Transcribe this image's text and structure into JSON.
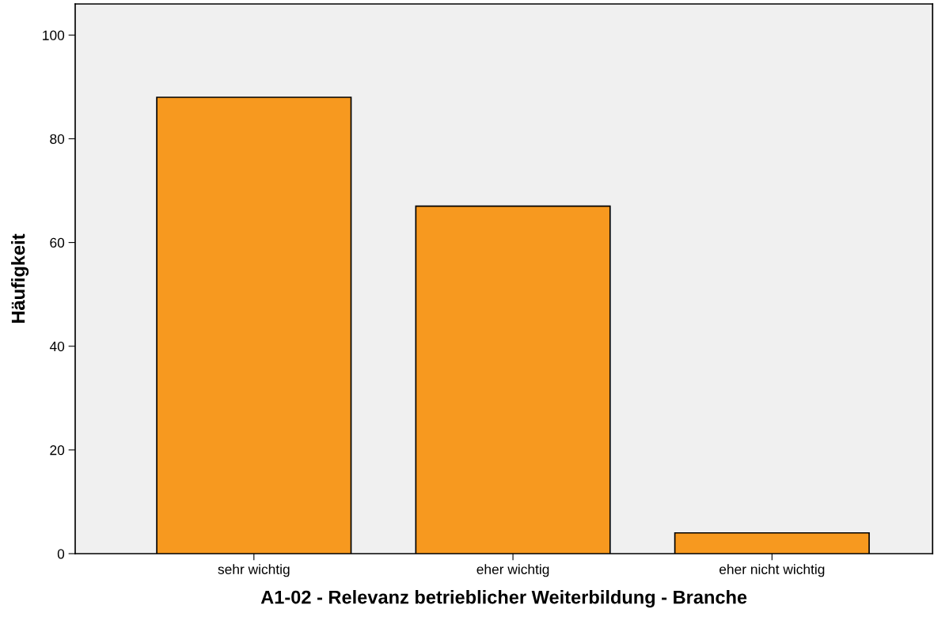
{
  "chart_data": {
    "type": "bar",
    "xlabel": "A1-02 - Relevanz betrieblicher Weiterbildung - Branche",
    "ylabel": "Häufigkeit",
    "categories": [
      "sehr wichtig",
      "eher wichtig",
      "eher nicht wichtig"
    ],
    "values": [
      88,
      67,
      4
    ],
    "color": "#f7991f",
    "ylim": [
      0,
      106
    ],
    "yticks": [
      0,
      20,
      40,
      60,
      80,
      100
    ],
    "grid": false
  }
}
